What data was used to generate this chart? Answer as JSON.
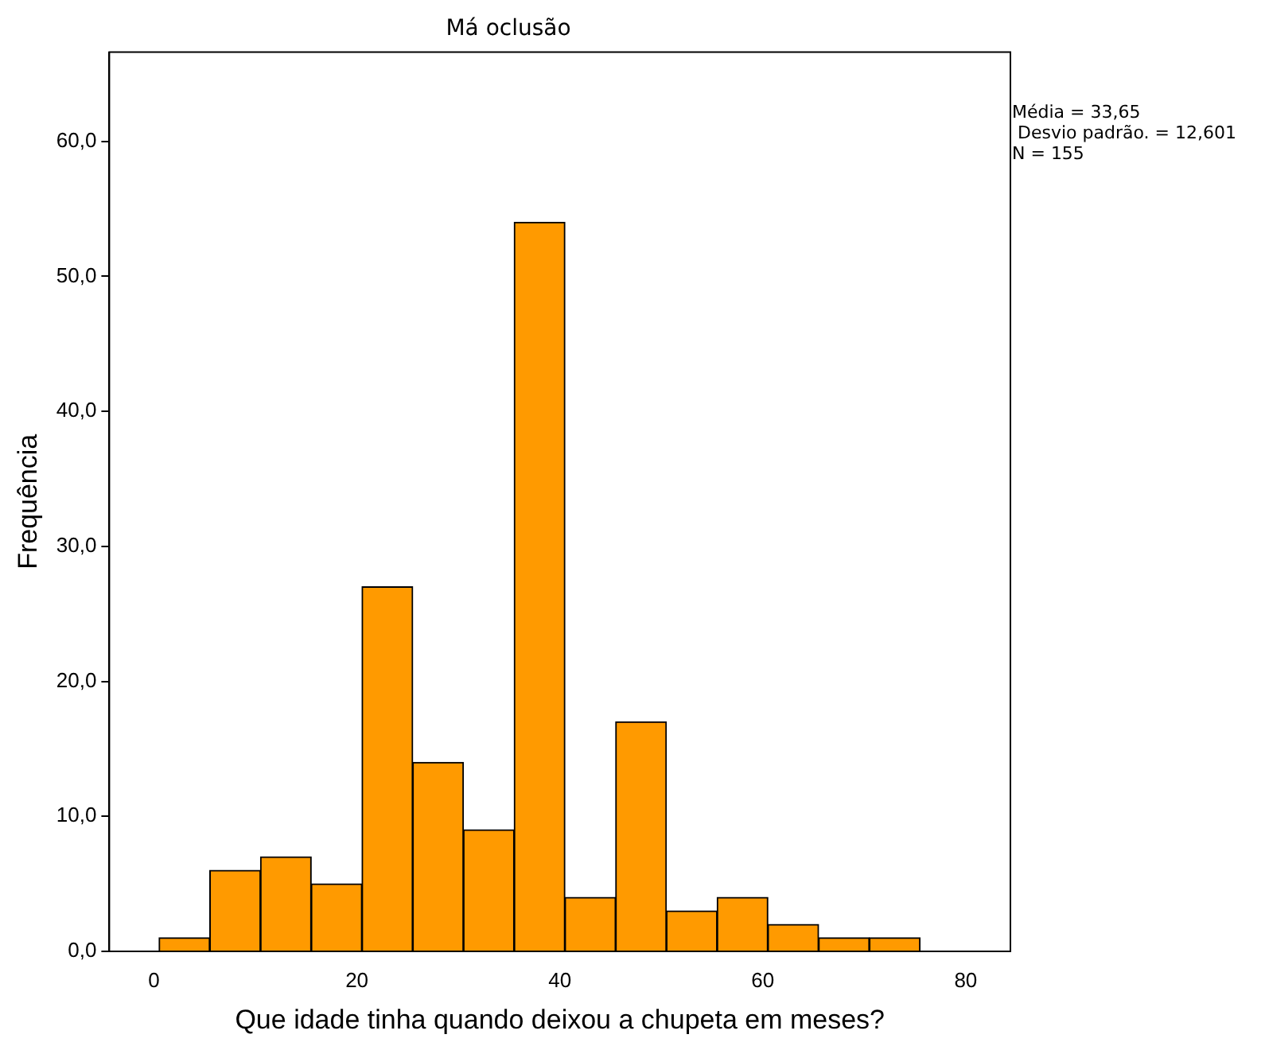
{
  "chart_data": {
    "type": "histogram",
    "title": "Má oclusão",
    "xlabel": "Que idade tinha quando deixou a chupeta em meses?",
    "ylabel": "Frequência",
    "bins": [
      0.5,
      5.5,
      10.5,
      15.5,
      20.5,
      25.5,
      30.5,
      35.5,
      40.5,
      45.5,
      50.5,
      55.5,
      60.5,
      65.5,
      70.5,
      75.5
    ],
    "values": [
      1,
      6,
      7,
      5,
      27,
      14,
      9,
      54,
      4,
      17,
      3,
      4,
      2,
      1,
      1
    ],
    "color": "#ff9a00",
    "xlim": [
      -4.4,
      84.4
    ],
    "xticks": [
      0,
      20,
      40,
      60,
      80
    ],
    "ylim": [
      0,
      66.6
    ],
    "yticks": [
      {
        "value": 0,
        "label": "0,0"
      },
      {
        "value": 10,
        "label": "10,0"
      },
      {
        "value": 20,
        "label": "20,0"
      },
      {
        "value": 30,
        "label": "30,0"
      },
      {
        "value": 40,
        "label": "40,0"
      },
      {
        "value": 50,
        "label": "50,0"
      },
      {
        "value": 60,
        "label": "60,0"
      }
    ],
    "grid": false,
    "legend": false,
    "annotations": [
      "Média = 33,65",
      " Desvio padrão. = 12,601",
      "N = 155"
    ]
  }
}
